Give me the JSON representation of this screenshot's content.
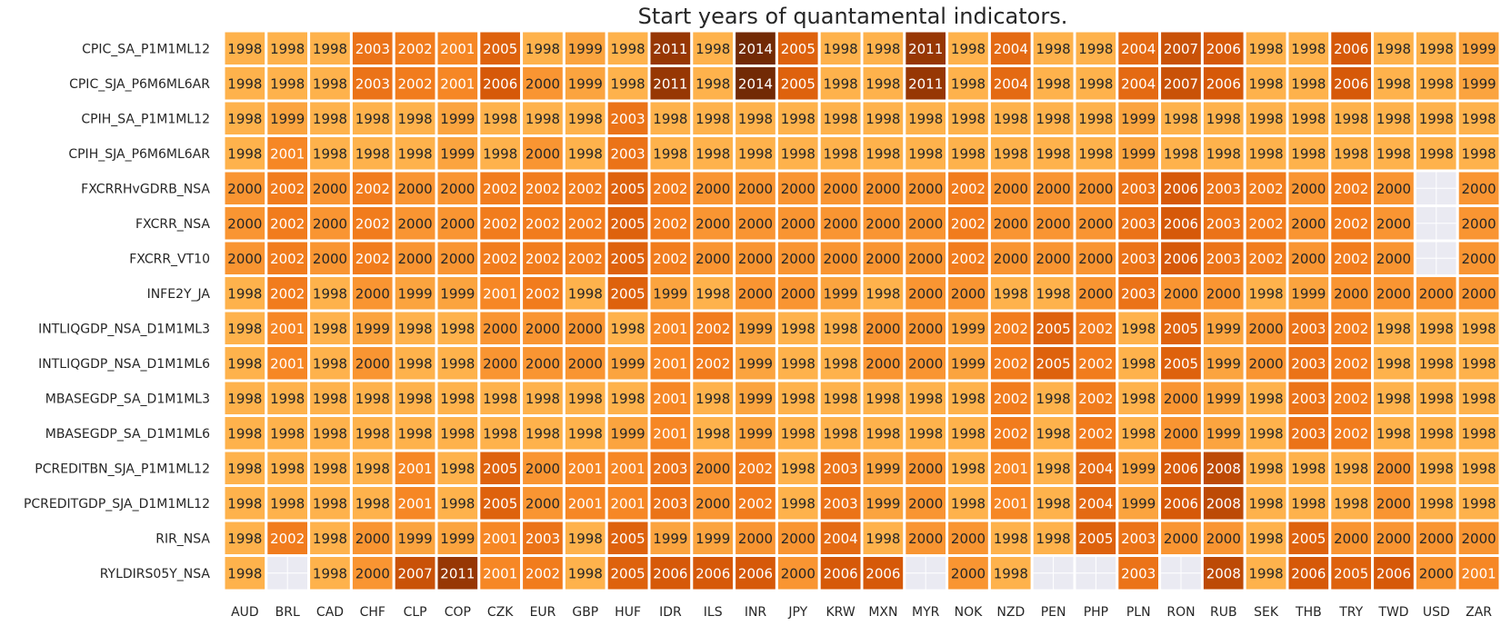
{
  "chart_data": {
    "type": "heatmap",
    "title": "Start years of quantamental indicators.",
    "xlabel": "",
    "ylabel": "",
    "columns": [
      "AUD",
      "BRL",
      "CAD",
      "CHF",
      "CLP",
      "COP",
      "CZK",
      "EUR",
      "GBP",
      "HUF",
      "IDR",
      "ILS",
      "INR",
      "JPY",
      "KRW",
      "MXN",
      "MYR",
      "NOK",
      "NZD",
      "PEN",
      "PHP",
      "PLN",
      "RON",
      "RUB",
      "SEK",
      "THB",
      "TRY",
      "TWD",
      "USD",
      "ZAR"
    ],
    "rows": [
      "CPIC_SA_P1M1ML12",
      "CPIC_SJA_P6M6ML6AR",
      "CPIH_SA_P1M1ML12",
      "CPIH_SJA_P6M6ML6AR",
      "FXCRRHvGDRB_NSA",
      "FXCRR_NSA",
      "FXCRR_VT10",
      "INFE2Y_JA",
      "INTLIQGDP_NSA_D1M1ML3",
      "INTLIQGDP_NSA_D1M1ML6",
      "MBASEGDP_SA_D1M1ML3",
      "MBASEGDP_SA_D1M1ML6",
      "PCREDITBN_SJA_P1M1ML12",
      "PCREDITGDP_SJA_D1M1ML12",
      "RIR_NSA",
      "RYLDIRS05Y_NSA"
    ],
    "values": [
      [
        1998,
        1998,
        1998,
        2003,
        2002,
        2001,
        2005,
        1998,
        1999,
        1998,
        2011,
        1998,
        2014,
        2005,
        1998,
        1998,
        2011,
        1998,
        2004,
        1998,
        1998,
        2004,
        2007,
        2006,
        1998,
        1998,
        2006,
        1998,
        1998,
        1999
      ],
      [
        1998,
        1998,
        1998,
        2003,
        2002,
        2001,
        2006,
        2000,
        1999,
        1998,
        2011,
        1998,
        2014,
        2005,
        1998,
        1998,
        2011,
        1998,
        2004,
        1998,
        1998,
        2004,
        2007,
        2006,
        1998,
        1998,
        2006,
        1998,
        1998,
        1999
      ],
      [
        1998,
        1999,
        1998,
        1998,
        1998,
        1999,
        1998,
        1998,
        1998,
        2003,
        1998,
        1998,
        1998,
        1998,
        1998,
        1998,
        1998,
        1998,
        1998,
        1998,
        1998,
        1999,
        1998,
        1998,
        1998,
        1998,
        1998,
        1998,
        1998,
        1998
      ],
      [
        1998,
        2001,
        1998,
        1998,
        1998,
        1999,
        1998,
        2000,
        1998,
        2003,
        1998,
        1998,
        1998,
        1998,
        1998,
        1998,
        1998,
        1998,
        1998,
        1998,
        1998,
        1999,
        1998,
        1998,
        1998,
        1998,
        1998,
        1998,
        1998,
        1998
      ],
      [
        2000,
        2002,
        2000,
        2002,
        2000,
        2000,
        2002,
        2002,
        2002,
        2005,
        2002,
        2000,
        2000,
        2000,
        2000,
        2000,
        2000,
        2002,
        2000,
        2000,
        2000,
        2003,
        2006,
        2003,
        2002,
        2000,
        2002,
        2000,
        null,
        2000
      ],
      [
        2000,
        2002,
        2000,
        2002,
        2000,
        2000,
        2002,
        2002,
        2002,
        2005,
        2002,
        2000,
        2000,
        2000,
        2000,
        2000,
        2000,
        2002,
        2000,
        2000,
        2000,
        2003,
        2006,
        2003,
        2002,
        2000,
        2002,
        2000,
        null,
        2000
      ],
      [
        2000,
        2002,
        2000,
        2002,
        2000,
        2000,
        2002,
        2002,
        2002,
        2005,
        2002,
        2000,
        2000,
        2000,
        2000,
        2000,
        2000,
        2002,
        2000,
        2000,
        2000,
        2003,
        2006,
        2003,
        2002,
        2000,
        2002,
        2000,
        null,
        2000
      ],
      [
        1998,
        2002,
        1998,
        2000,
        1999,
        1999,
        2001,
        2002,
        1998,
        2005,
        1999,
        1998,
        2000,
        2000,
        1999,
        1998,
        2000,
        2000,
        1998,
        1998,
        2000,
        2003,
        2000,
        2000,
        1998,
        1999,
        2000,
        2000,
        2000,
        2000
      ],
      [
        1998,
        2001,
        1998,
        1999,
        1998,
        1998,
        2000,
        2000,
        2000,
        1998,
        2001,
        2002,
        1999,
        1998,
        1998,
        2000,
        2000,
        1999,
        2002,
        2005,
        2002,
        1998,
        2005,
        1999,
        2000,
        2003,
        2002,
        1998,
        1998,
        1998
      ],
      [
        1998,
        2001,
        1998,
        2000,
        1998,
        1998,
        2000,
        2000,
        2000,
        1999,
        2001,
        2002,
        1999,
        1998,
        1998,
        2000,
        2000,
        1999,
        2002,
        2005,
        2002,
        1998,
        2005,
        1999,
        2000,
        2003,
        2002,
        1998,
        1998,
        1998
      ],
      [
        1998,
        1998,
        1998,
        1998,
        1998,
        1998,
        1998,
        1998,
        1998,
        1998,
        2001,
        1998,
        1999,
        1998,
        1998,
        1998,
        1998,
        1998,
        2002,
        1998,
        2002,
        1998,
        2000,
        1999,
        1998,
        2003,
        2002,
        1998,
        1998,
        1998
      ],
      [
        1998,
        1998,
        1998,
        1998,
        1998,
        1998,
        1998,
        1998,
        1998,
        1999,
        2001,
        1998,
        1999,
        1998,
        1998,
        1998,
        1998,
        1998,
        2002,
        1998,
        2002,
        1998,
        2000,
        1999,
        1998,
        2003,
        2002,
        1998,
        1998,
        1998
      ],
      [
        1998,
        1998,
        1998,
        1998,
        2001,
        1998,
        2005,
        2000,
        2001,
        2001,
        2003,
        2000,
        2002,
        1998,
        2003,
        1999,
        2000,
        1998,
        2001,
        1998,
        2004,
        1999,
        2006,
        2008,
        1998,
        1998,
        1998,
        2000,
        1998,
        1998
      ],
      [
        1998,
        1998,
        1998,
        1998,
        2001,
        1998,
        2005,
        2000,
        2001,
        2001,
        2003,
        2000,
        2002,
        1998,
        2003,
        1999,
        2000,
        1998,
        2001,
        1998,
        2004,
        1999,
        2006,
        2008,
        1998,
        1998,
        1998,
        2000,
        1998,
        1998
      ],
      [
        1998,
        2002,
        1998,
        2000,
        1999,
        1999,
        2001,
        2003,
        1998,
        2005,
        1999,
        1999,
        2000,
        2000,
        2004,
        1998,
        2000,
        2000,
        1998,
        1998,
        2005,
        2003,
        2000,
        2000,
        1998,
        2005,
        2000,
        2000,
        2000,
        2000
      ],
      [
        1998,
        null,
        1998,
        2000,
        2007,
        2011,
        2001,
        2002,
        1998,
        2005,
        2006,
        2006,
        2006,
        2000,
        2006,
        2006,
        null,
        2000,
        1998,
        null,
        null,
        2003,
        null,
        2008,
        1998,
        2006,
        2005,
        2006,
        2000,
        2001
      ]
    ],
    "colormap": "YlOrBr",
    "vmin": 1998,
    "vmax": 2015,
    "missing_color": "#eaeaf2",
    "grid_color": "#ffffff"
  }
}
